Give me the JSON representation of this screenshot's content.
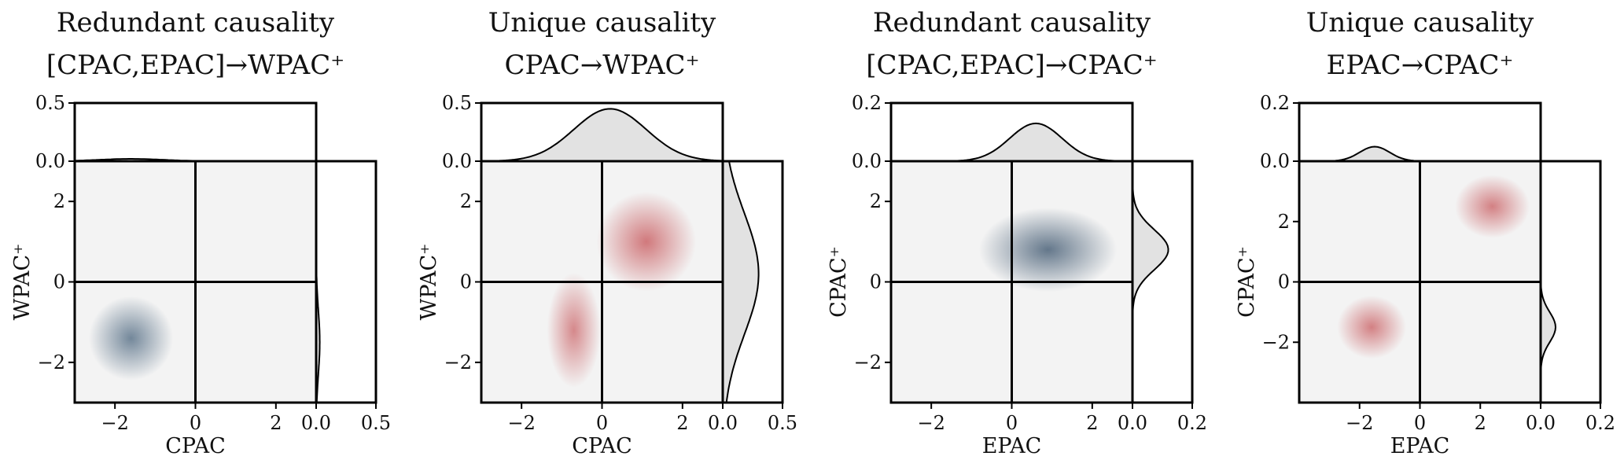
{
  "chart_data": [
    {
      "type": "joint-density",
      "title_line1": "Redundant causality",
      "title_line2": "[CPAC,EPAC]→WPAC⁺",
      "xlabel": "CPAC",
      "ylabel": "WPAC⁺",
      "xlim": [
        -3,
        3
      ],
      "ylim": [
        -3,
        3
      ],
      "x_ticks": [
        "−2",
        "0",
        "2"
      ],
      "x_tick_values": [
        -2,
        0,
        2
      ],
      "y_ticks": [
        "−2",
        "0",
        "2"
      ],
      "y_tick_values": [
        -2,
        0,
        2
      ],
      "top_marginal": {
        "ylim": [
          0,
          0.5
        ],
        "ticks": [
          "0.0",
          "0.5"
        ],
        "tick_values": [
          0,
          0.5
        ],
        "peak": 0.02,
        "mean": -1.6,
        "sd": 0.8
      },
      "right_marginal": {
        "xlim": [
          0,
          0.5
        ],
        "ticks": [
          "0.0",
          "0.5"
        ],
        "tick_values": [
          0,
          0.5
        ],
        "peak": 0.03,
        "mean": -1.5,
        "sd": 0.8
      },
      "blobs": [
        {
          "color": "#5c748a",
          "x": -1.6,
          "y": -1.4,
          "sx": 0.55,
          "sy": 0.55,
          "alpha": 0.85
        }
      ]
    },
    {
      "type": "joint-density",
      "title_line1": "Unique causality",
      "title_line2": "CPAC→WPAC⁺",
      "xlabel": "CPAC",
      "ylabel": "WPAC⁺",
      "xlim": [
        -3,
        3
      ],
      "ylim": [
        -3,
        3
      ],
      "x_ticks": [
        "−2",
        "0",
        "2"
      ],
      "x_tick_values": [
        -2,
        0,
        2
      ],
      "y_ticks": [
        "−2",
        "0",
        "2"
      ],
      "y_tick_values": [
        -2,
        0,
        2
      ],
      "top_marginal": {
        "ylim": [
          0,
          0.5
        ],
        "ticks": [
          "0.0",
          "0.5"
        ],
        "tick_values": [
          0,
          0.5
        ],
        "peak": 0.45,
        "mean": 0.2,
        "sd": 0.9
      },
      "right_marginal": {
        "xlim": [
          0,
          0.5
        ],
        "ticks": [
          "0.0",
          "0.5"
        ],
        "tick_values": [
          0,
          0.5
        ],
        "peak": 0.3,
        "mean": 0.2,
        "sd": 1.5
      },
      "blobs": [
        {
          "color": "#c85a5e",
          "x": 1.1,
          "y": 1.0,
          "sx": 0.65,
          "sy": 0.65,
          "alpha": 0.8
        },
        {
          "color": "#c85a5e",
          "x": -0.7,
          "y": -1.2,
          "sx": 0.35,
          "sy": 0.75,
          "alpha": 0.7
        }
      ]
    },
    {
      "type": "joint-density",
      "title_line1": "Redundant causality",
      "title_line2": "[CPAC,EPAC]→CPAC⁺",
      "xlabel": "EPAC",
      "ylabel": "CPAC⁺",
      "xlim": [
        -3,
        3
      ],
      "ylim": [
        -3,
        3
      ],
      "x_ticks": [
        "−2",
        "0",
        "2"
      ],
      "x_tick_values": [
        -2,
        0,
        2
      ],
      "y_ticks": [
        "−2",
        "0",
        "2"
      ],
      "y_tick_values": [
        -2,
        0,
        2
      ],
      "top_marginal": {
        "ylim": [
          0,
          0.2
        ],
        "ticks": [
          "0.0",
          "0.2"
        ],
        "tick_values": [
          0,
          0.2
        ],
        "peak": 0.13,
        "mean": 0.6,
        "sd": 0.65
      },
      "right_marginal": {
        "xlim": [
          0,
          0.2
        ],
        "ticks": [
          "0.0",
          "0.2"
        ],
        "tick_values": [
          0,
          0.2
        ],
        "peak": 0.12,
        "mean": 0.8,
        "sd": 0.5
      },
      "blobs": [
        {
          "color": "#4a6178",
          "x": 0.9,
          "y": 0.8,
          "sx": 0.9,
          "sy": 0.55,
          "alpha": 0.85
        }
      ]
    },
    {
      "type": "joint-density",
      "title_line1": "Unique causality",
      "title_line2": "EPAC→CPAC⁺",
      "xlabel": "EPAC",
      "ylabel": "CPAC⁺",
      "xlim": [
        -4,
        4
      ],
      "ylim": [
        -4,
        4
      ],
      "x_ticks": [
        "−2",
        "0",
        "2"
      ],
      "x_tick_values": [
        -2,
        0,
        2
      ],
      "y_ticks": [
        "−2",
        "0",
        "2"
      ],
      "y_tick_values": [
        -2,
        0,
        2
      ],
      "top_marginal": {
        "ylim": [
          0,
          0.2
        ],
        "ticks": [
          "0.0",
          "0.2"
        ],
        "tick_values": [
          0,
          0.2
        ],
        "peak": 0.05,
        "mean": -1.5,
        "sd": 0.5
      },
      "right_marginal": {
        "xlim": [
          0,
          0.2
        ],
        "ticks": [
          "0.0",
          "0.2"
        ],
        "tick_values": [
          0,
          0.2
        ],
        "peak": 0.05,
        "mean": -1.5,
        "sd": 0.5
      },
      "blobs": [
        {
          "color": "#c85a5e",
          "x": 2.4,
          "y": 2.5,
          "sx": 0.65,
          "sy": 0.55,
          "alpha": 0.75
        },
        {
          "color": "#c85a5e",
          "x": -1.6,
          "y": -1.5,
          "sx": 0.6,
          "sy": 0.55,
          "alpha": 0.75
        }
      ]
    }
  ]
}
